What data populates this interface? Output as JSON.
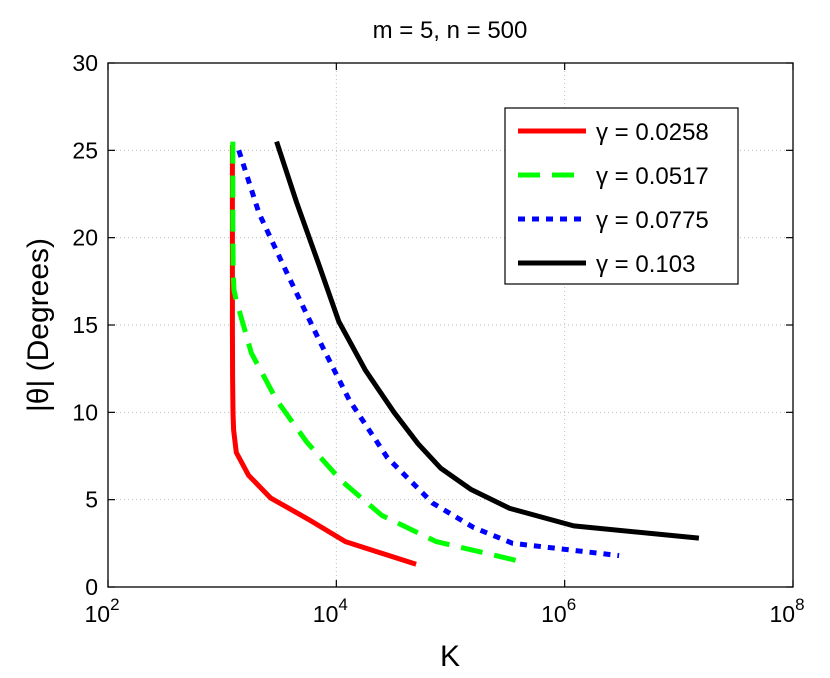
{
  "chart_data": {
    "type": "line",
    "title": "m = 5, n = 500",
    "xlabel": "K",
    "ylabel": "|θ| (Degrees)",
    "xscale": "log",
    "xlim": [
      100,
      100000000
    ],
    "ylim": [
      0,
      30
    ],
    "x_ticks": [
      {
        "value": 100,
        "base": "10",
        "exp": "2"
      },
      {
        "value": 10000,
        "base": "10",
        "exp": "4"
      },
      {
        "value": 1000000,
        "base": "10",
        "exp": "6"
      },
      {
        "value": 100000000,
        "base": "10",
        "exp": "8"
      }
    ],
    "y_ticks": [
      0,
      5,
      10,
      15,
      20,
      25,
      30
    ],
    "y_tick_labels": [
      "0",
      "5",
      "10",
      "15",
      "20",
      "25",
      "30"
    ],
    "grid": true,
    "legend_position": "top-right",
    "series": [
      {
        "name": "γ = 0.0258",
        "color": "#ff0000",
        "style": "solid",
        "x": [
          1230,
          1230,
          1230,
          1235,
          1245,
          1260,
          1330,
          1700,
          2650,
          5600,
          12000,
          50000
        ],
        "y": [
          25.3,
          20,
          15,
          12,
          10,
          9,
          7.7,
          6.4,
          5.1,
          3.9,
          2.6,
          1.3
        ]
      },
      {
        "name": "γ = 0.0517",
        "color": "#00ff00",
        "style": "dashed",
        "x": [
          1240,
          1240,
          1250,
          1270,
          1320,
          1800,
          3000,
          5500,
          11000,
          25000,
          75000,
          450000
        ],
        "y": [
          25.5,
          21,
          18,
          17,
          16.5,
          13.4,
          10.7,
          8.3,
          6.1,
          4.1,
          2.6,
          1.4
        ]
      },
      {
        "name": "γ = 0.0775",
        "color": "#0000ff",
        "style": "dotted",
        "x": [
          1400,
          2100,
          3800,
          7000,
          13000,
          28000,
          70000,
          160000,
          350000,
          3000000
        ],
        "y": [
          25,
          21.4,
          17.8,
          14.2,
          10.7,
          7.4,
          4.8,
          3.4,
          2.5,
          1.8
        ]
      },
      {
        "name": "γ = 0.103",
        "color": "#000000",
        "style": "solid",
        "x": [
          3000,
          4500,
          7000,
          10500,
          18000,
          32000,
          52000,
          82000,
          150000,
          330000,
          1200000,
          15000000
        ],
        "y": [
          25.5,
          22,
          18.5,
          15.2,
          12.4,
          10,
          8.2,
          6.8,
          5.6,
          4.5,
          3.5,
          2.8
        ]
      }
    ]
  }
}
